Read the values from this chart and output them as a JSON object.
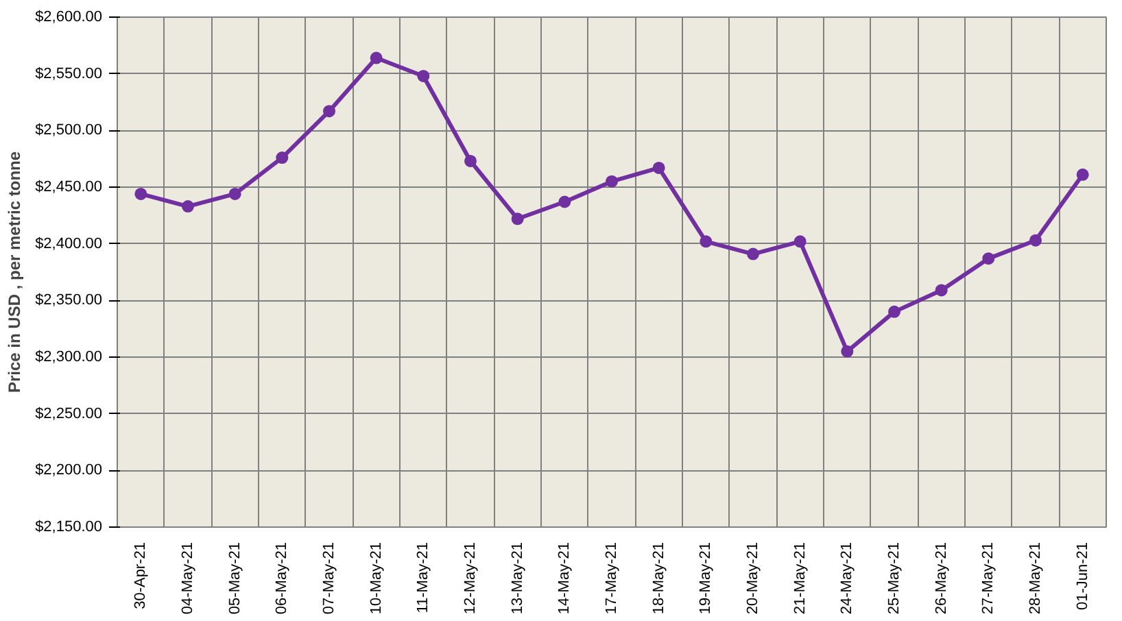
{
  "chart_data": {
    "type": "line",
    "ylabel": "Price in USD , per metric tonne",
    "categories": [
      "30-Apr-21",
      "04-May-21",
      "05-May-21",
      "06-May-21",
      "07-May-21",
      "10-May-21",
      "11-May-21",
      "12-May-21",
      "13-May-21",
      "14-May-21",
      "17-May-21",
      "18-May-21",
      "19-May-21",
      "20-May-21",
      "21-May-21",
      "24-May-21",
      "25-May-21",
      "26-May-21",
      "27-May-21",
      "28-May-21",
      "01-Jun-21"
    ],
    "series": [
      {
        "color": "#7030a0",
        "values": [
          2444,
          2433,
          2444,
          2476,
          2517,
          2564,
          2548,
          2473,
          2422,
          2437,
          2455,
          2467,
          2402,
          2391,
          2402,
          2305,
          2340,
          2359,
          2387,
          2403,
          2461
        ]
      }
    ],
    "ylim": [
      2150,
      2600
    ],
    "yticks": [
      {
        "value": 2150,
        "label": "$2,150.00"
      },
      {
        "value": 2200,
        "label": "$2,200.00"
      },
      {
        "value": 2250,
        "label": "$2,250.00"
      },
      {
        "value": 2300,
        "label": "$2,300.00"
      },
      {
        "value": 2350,
        "label": "$2,350.00"
      },
      {
        "value": 2400,
        "label": "$2,400.00"
      },
      {
        "value": 2450,
        "label": "$2,450.00"
      },
      {
        "value": 2500,
        "label": "$2,500.00"
      },
      {
        "value": 2550,
        "label": "$2,550.00"
      },
      {
        "value": 2600,
        "label": "$2,600.00"
      }
    ],
    "grid": true,
    "marker": "circle",
    "line_style": "solid"
  }
}
